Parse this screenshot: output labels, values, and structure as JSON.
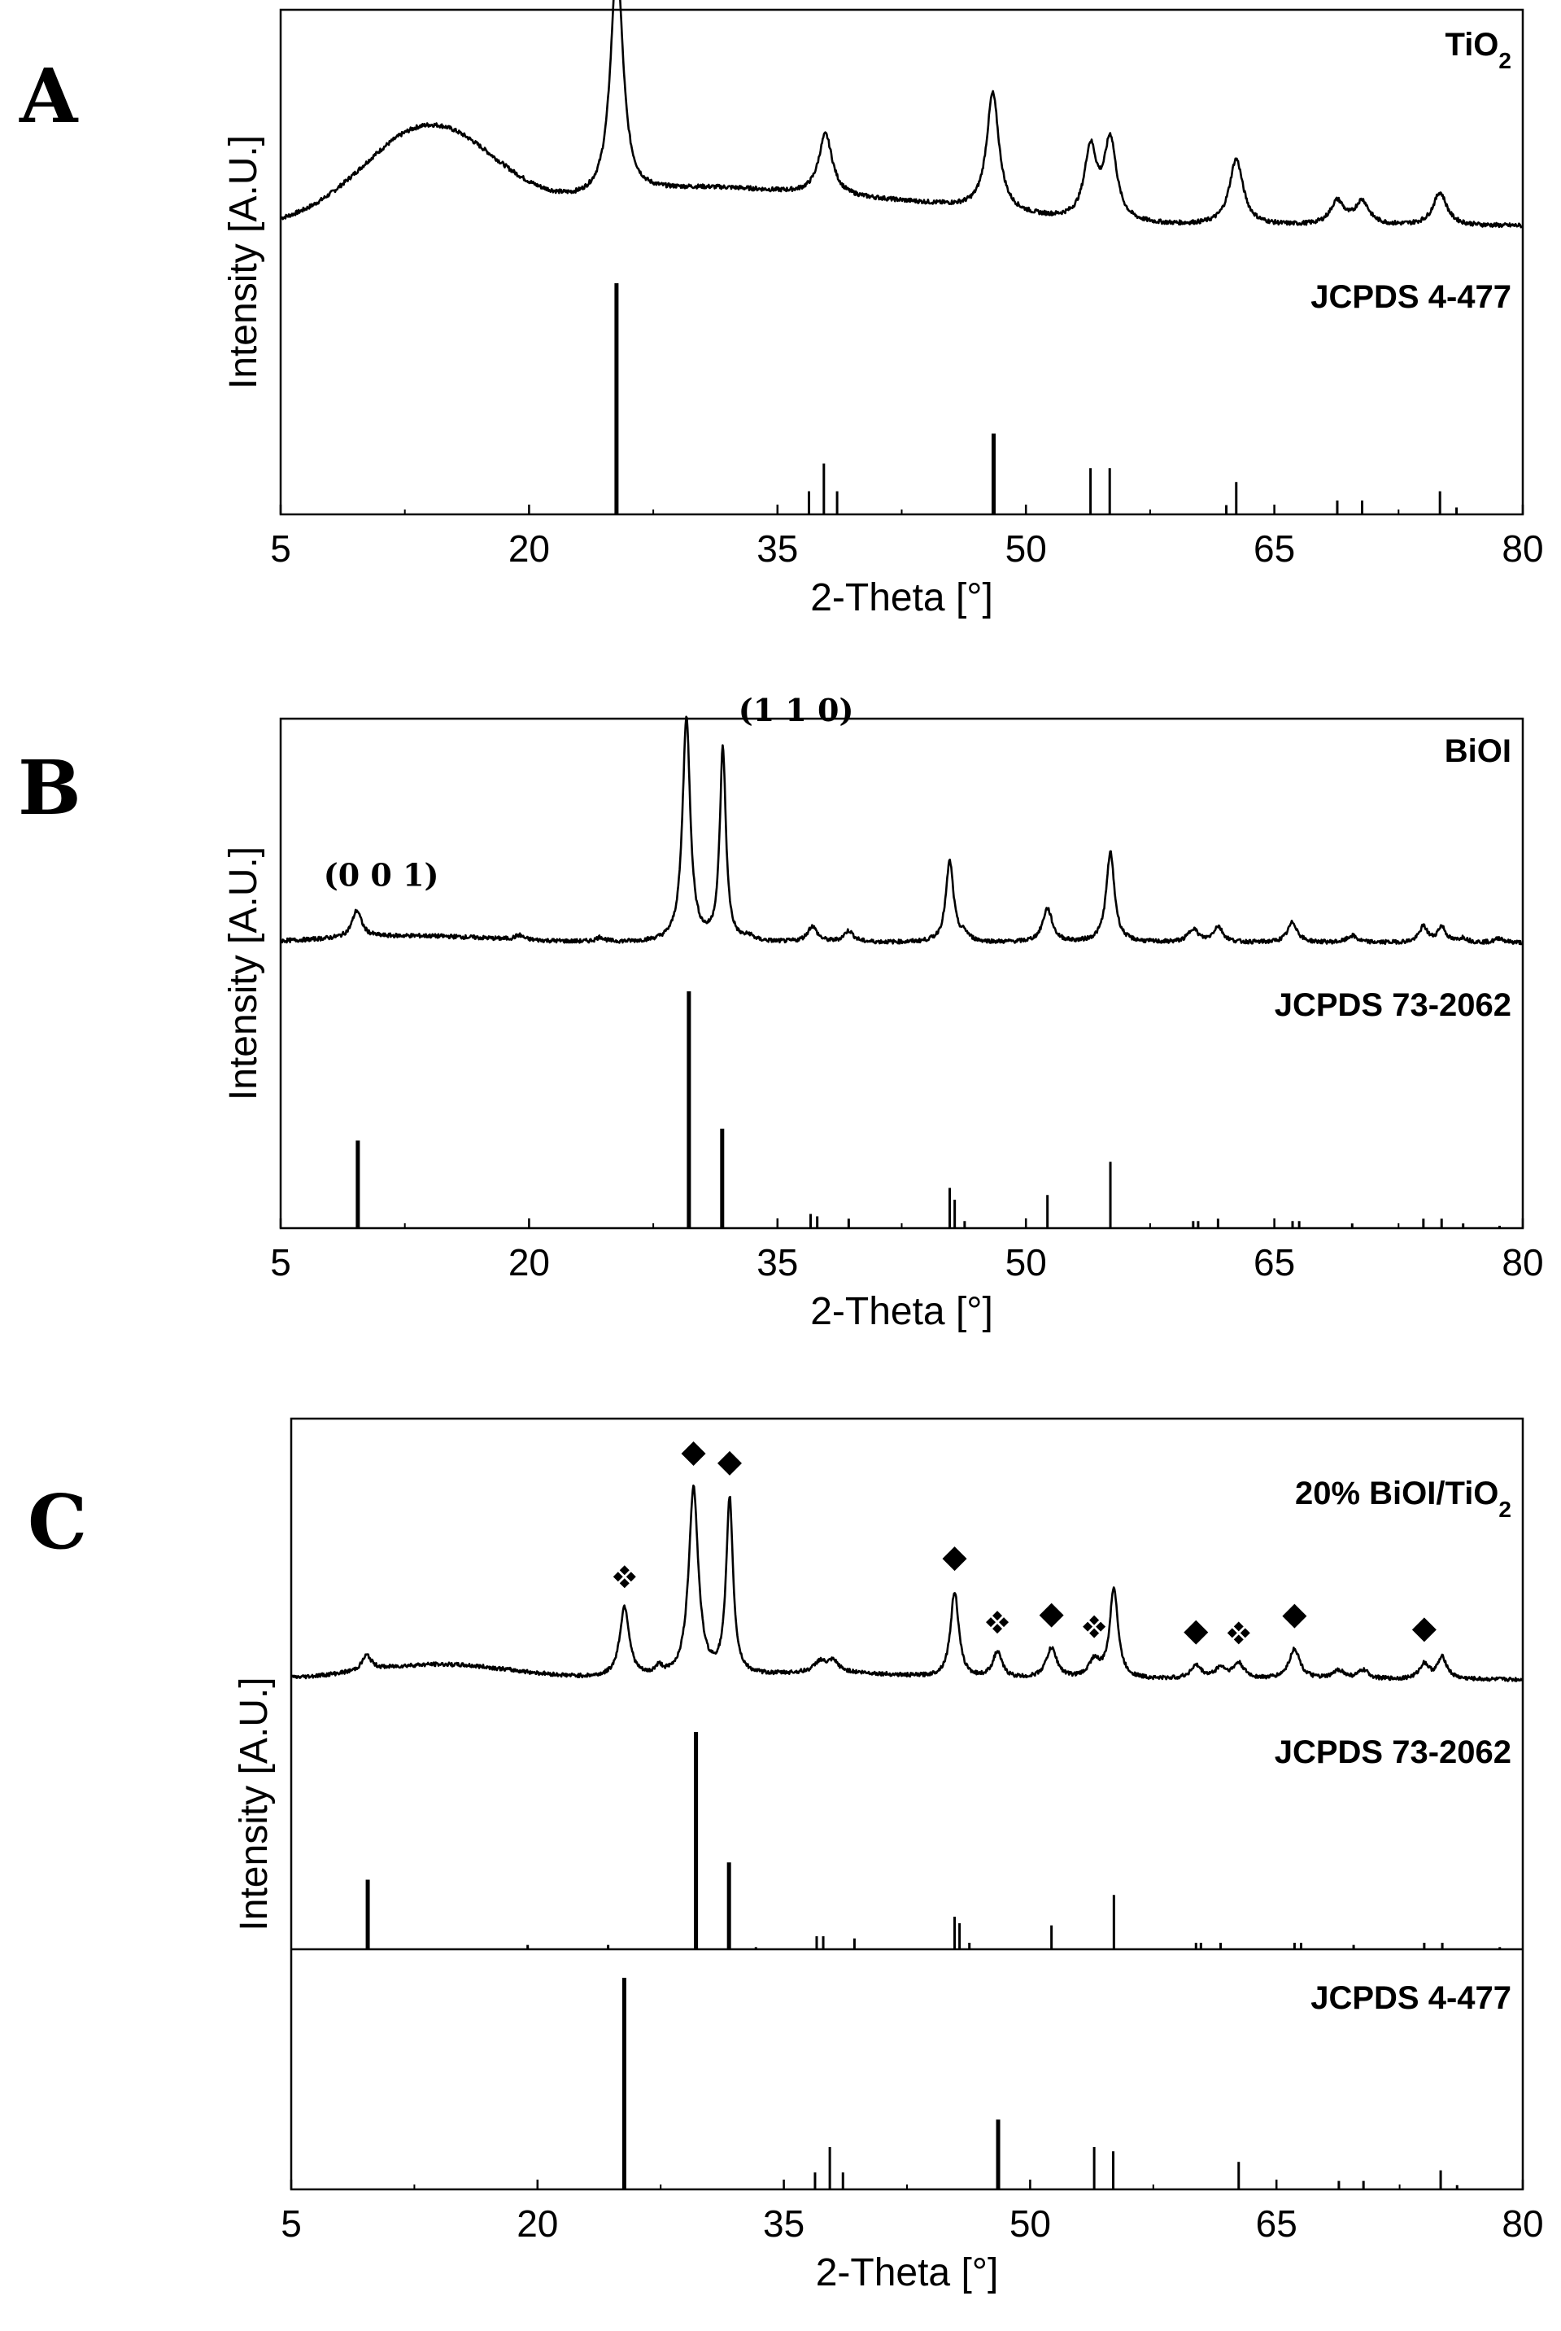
{
  "chart_data": [
    {
      "type": "line",
      "panel_letter": "A",
      "xlabel": "2-Theta [°]",
      "ylabel": "Intensity [A.U.]",
      "xlim": [
        5,
        80
      ],
      "xticks": [
        5,
        20,
        35,
        50,
        65,
        80
      ],
      "series": [
        {
          "name": "TiO₂",
          "baseline": 0.18,
          "broad": [
            {
              "c": 14.0,
              "w": 4.0,
              "h": 0.42
            },
            {
              "c": 30.0,
              "w": 6.5,
              "h": 0.15
            },
            {
              "c": 43.0,
              "w": 6.0,
              "h": 0.08
            }
          ],
          "peaks": [
            {
              "x": 25.3,
              "h": 1.0,
              "w": 0.45
            },
            {
              "x": 37.9,
              "h": 0.26,
              "w": 0.5
            },
            {
              "x": 48.0,
              "h": 0.5,
              "w": 0.45
            },
            {
              "x": 53.9,
              "h": 0.3,
              "w": 0.45
            },
            {
              "x": 55.1,
              "h": 0.34,
              "w": 0.45
            },
            {
              "x": 62.7,
              "h": 0.28,
              "w": 0.5
            },
            {
              "x": 68.8,
              "h": 0.1,
              "w": 0.5
            },
            {
              "x": 70.3,
              "h": 0.1,
              "w": 0.5
            },
            {
              "x": 75.0,
              "h": 0.14,
              "w": 0.5
            }
          ]
        }
      ],
      "references": [
        {
          "name": "JCPDS 4-477",
          "sticks": [
            {
              "x": 25.28,
              "h": 1.0
            },
            {
              "x": 36.9,
              "h": 0.1
            },
            {
              "x": 37.8,
              "h": 0.22
            },
            {
              "x": 38.6,
              "h": 0.1
            },
            {
              "x": 48.05,
              "h": 0.35
            },
            {
              "x": 53.9,
              "h": 0.2
            },
            {
              "x": 55.06,
              "h": 0.2
            },
            {
              "x": 62.1,
              "h": 0.04
            },
            {
              "x": 62.7,
              "h": 0.14
            },
            {
              "x": 68.8,
              "h": 0.06
            },
            {
              "x": 70.3,
              "h": 0.06
            },
            {
              "x": 75.0,
              "h": 0.1
            },
            {
              "x": 76.0,
              "h": 0.03
            }
          ]
        }
      ],
      "annotations": []
    },
    {
      "type": "line",
      "panel_letter": "B",
      "xlabel": "2-Theta [°]",
      "ylabel": "Intensity [A.U.]",
      "xlim": [
        5,
        80
      ],
      "xticks": [
        5,
        20,
        35,
        50,
        65,
        80
      ],
      "series": [
        {
          "name": "BiOI",
          "baseline": 0.1,
          "broad": [
            {
              "c": 13.0,
              "w": 5.0,
              "h": 0.03
            }
          ],
          "peaks": [
            {
              "x": 9.6,
              "h": 0.12,
              "w": 0.35
            },
            {
              "x": 19.4,
              "h": 0.02,
              "w": 0.3
            },
            {
              "x": 24.3,
              "h": 0.02,
              "w": 0.3
            },
            {
              "x": 29.5,
              "h": 1.0,
              "w": 0.28
            },
            {
              "x": 31.7,
              "h": 0.86,
              "w": 0.22
            },
            {
              "x": 33.3,
              "h": 0.02,
              "w": 0.3
            },
            {
              "x": 37.1,
              "h": 0.07,
              "w": 0.35
            },
            {
              "x": 39.3,
              "h": 0.05,
              "w": 0.35
            },
            {
              "x": 45.4,
              "h": 0.36,
              "w": 0.28
            },
            {
              "x": 46.3,
              "h": 0.03,
              "w": 0.3
            },
            {
              "x": 51.3,
              "h": 0.15,
              "w": 0.35
            },
            {
              "x": 55.1,
              "h": 0.4,
              "w": 0.3
            },
            {
              "x": 60.1,
              "h": 0.06,
              "w": 0.35
            },
            {
              "x": 61.6,
              "h": 0.07,
              "w": 0.35
            },
            {
              "x": 66.1,
              "h": 0.09,
              "w": 0.35
            },
            {
              "x": 69.7,
              "h": 0.03,
              "w": 0.35
            },
            {
              "x": 74.0,
              "h": 0.07,
              "w": 0.3
            },
            {
              "x": 75.1,
              "h": 0.07,
              "w": 0.3
            },
            {
              "x": 76.4,
              "h": 0.02,
              "w": 0.3
            },
            {
              "x": 78.6,
              "h": 0.02,
              "w": 0.3
            }
          ]
        }
      ],
      "references": [
        {
          "name": "JCPDS 73-2062",
          "sticks": [
            {
              "x": 9.66,
              "h": 0.37
            },
            {
              "x": 29.65,
              "h": 1.0
            },
            {
              "x": 31.66,
              "h": 0.42
            },
            {
              "x": 37.0,
              "h": 0.06
            },
            {
              "x": 37.4,
              "h": 0.05
            },
            {
              "x": 39.3,
              "h": 0.04
            },
            {
              "x": 45.4,
              "h": 0.17
            },
            {
              "x": 45.7,
              "h": 0.12
            },
            {
              "x": 46.3,
              "h": 0.03
            },
            {
              "x": 51.3,
              "h": 0.14
            },
            {
              "x": 55.1,
              "h": 0.28
            },
            {
              "x": 60.1,
              "h": 0.03
            },
            {
              "x": 60.4,
              "h": 0.03
            },
            {
              "x": 61.6,
              "h": 0.04
            },
            {
              "x": 66.1,
              "h": 0.03
            },
            {
              "x": 66.5,
              "h": 0.03
            },
            {
              "x": 69.7,
              "h": 0.02
            },
            {
              "x": 74.0,
              "h": 0.04
            },
            {
              "x": 75.1,
              "h": 0.04
            },
            {
              "x": 76.4,
              "h": 0.02
            },
            {
              "x": 78.6,
              "h": 0.01
            }
          ]
        }
      ],
      "annotations": [
        {
          "text": "(0 0 1)",
          "x": 9.6
        },
        {
          "text": "(1 1 0)",
          "x": 31.7
        }
      ]
    },
    {
      "type": "line",
      "panel_letter": "C",
      "xlabel": "2-Theta [°]",
      "ylabel": "Intensity [A.U.]",
      "xlim": [
        5,
        80
      ],
      "xticks": [
        5,
        20,
        35,
        50,
        65,
        80
      ],
      "series": [
        {
          "name": "20% BiOI/TiO₂",
          "baseline": 0.08,
          "broad": [
            {
              "c": 14.0,
              "w": 4.5,
              "h": 0.07
            },
            {
              "c": 38.0,
              "w": 4.0,
              "h": 0.03
            }
          ],
          "peaks": [
            {
              "x": 9.6,
              "h": 0.07,
              "w": 0.35
            },
            {
              "x": 25.3,
              "h": 0.33,
              "w": 0.35
            },
            {
              "x": 27.4,
              "h": 0.04,
              "w": 0.3
            },
            {
              "x": 29.5,
              "h": 0.88,
              "w": 0.35
            },
            {
              "x": 31.7,
              "h": 0.82,
              "w": 0.25
            },
            {
              "x": 37.2,
              "h": 0.05,
              "w": 0.4
            },
            {
              "x": 38.0,
              "h": 0.05,
              "w": 0.4
            },
            {
              "x": 45.4,
              "h": 0.4,
              "w": 0.3
            },
            {
              "x": 48.0,
              "h": 0.12,
              "w": 0.35
            },
            {
              "x": 51.3,
              "h": 0.14,
              "w": 0.4
            },
            {
              "x": 53.9,
              "h": 0.08,
              "w": 0.4
            },
            {
              "x": 55.1,
              "h": 0.42,
              "w": 0.3
            },
            {
              "x": 60.1,
              "h": 0.06,
              "w": 0.4
            },
            {
              "x": 61.6,
              "h": 0.05,
              "w": 0.4
            },
            {
              "x": 62.7,
              "h": 0.07,
              "w": 0.4
            },
            {
              "x": 66.1,
              "h": 0.14,
              "w": 0.4
            },
            {
              "x": 68.8,
              "h": 0.04,
              "w": 0.4
            },
            {
              "x": 70.3,
              "h": 0.04,
              "w": 0.4
            },
            {
              "x": 74.0,
              "h": 0.07,
              "w": 0.35
            },
            {
              "x": 75.1,
              "h": 0.1,
              "w": 0.35
            }
          ]
        }
      ],
      "references": [
        {
          "name": "JCPDS 73-2062",
          "sticks": [
            {
              "x": 9.66,
              "h": 0.32
            },
            {
              "x": 19.4,
              "h": 0.02
            },
            {
              "x": 24.3,
              "h": 0.02
            },
            {
              "x": 29.65,
              "h": 1.0
            },
            {
              "x": 31.66,
              "h": 0.4
            },
            {
              "x": 33.3,
              "h": 0.01
            },
            {
              "x": 37.0,
              "h": 0.06
            },
            {
              "x": 37.4,
              "h": 0.06
            },
            {
              "x": 39.3,
              "h": 0.05
            },
            {
              "x": 45.4,
              "h": 0.15
            },
            {
              "x": 45.7,
              "h": 0.12
            },
            {
              "x": 46.3,
              "h": 0.03
            },
            {
              "x": 51.3,
              "h": 0.11
            },
            {
              "x": 55.1,
              "h": 0.25
            },
            {
              "x": 60.1,
              "h": 0.03
            },
            {
              "x": 60.4,
              "h": 0.03
            },
            {
              "x": 61.6,
              "h": 0.03
            },
            {
              "x": 66.1,
              "h": 0.03
            },
            {
              "x": 66.5,
              "h": 0.03
            },
            {
              "x": 69.7,
              "h": 0.02
            },
            {
              "x": 74.0,
              "h": 0.03
            },
            {
              "x": 75.1,
              "h": 0.03
            },
            {
              "x": 78.6,
              "h": 0.01
            }
          ]
        },
        {
          "name": "JCPDS 4-477",
          "sticks": [
            {
              "x": 25.28,
              "h": 1.0
            },
            {
              "x": 36.9,
              "h": 0.08
            },
            {
              "x": 37.8,
              "h": 0.2
            },
            {
              "x": 38.6,
              "h": 0.08
            },
            {
              "x": 48.05,
              "h": 0.33
            },
            {
              "x": 53.9,
              "h": 0.2
            },
            {
              "x": 55.06,
              "h": 0.18
            },
            {
              "x": 62.7,
              "h": 0.13
            },
            {
              "x": 68.8,
              "h": 0.04
            },
            {
              "x": 70.3,
              "h": 0.04
            },
            {
              "x": 75.0,
              "h": 0.09
            },
            {
              "x": 76.0,
              "h": 0.02
            }
          ]
        }
      ],
      "annotations": [
        {
          "marker": "diamond",
          "x": 29.5
        },
        {
          "marker": "diamond",
          "x": 31.7
        },
        {
          "marker": "diamond",
          "x": 45.4
        },
        {
          "marker": "diamond",
          "x": 51.3
        },
        {
          "marker": "diamond",
          "x": 60.1
        },
        {
          "marker": "diamond",
          "x": 66.1
        },
        {
          "marker": "diamond",
          "x": 74.0
        },
        {
          "marker": "four-diamond",
          "x": 25.3
        },
        {
          "marker": "four-diamond",
          "x": 48.0
        },
        {
          "marker": "four-diamond",
          "x": 53.9
        },
        {
          "marker": "four-diamond",
          "x": 62.7
        }
      ]
    }
  ]
}
